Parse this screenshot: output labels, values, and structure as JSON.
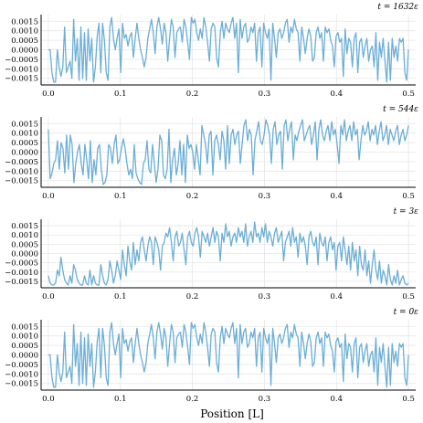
{
  "figure": {
    "xlabel": "Position [L]",
    "line_color": "#6baed6",
    "grid_color": "#e6e6e6"
  },
  "chart_data": [
    {
      "type": "line",
      "title": "t = 1632ε",
      "xlabel": "",
      "ylabel": "",
      "xlim": [
        -0.01,
        0.51
      ],
      "ylim": [
        -0.00185,
        0.00185
      ],
      "xticks": [
        0.0,
        0.1,
        0.2,
        0.3,
        0.4,
        0.5
      ],
      "xtick_labels": [
        "0.0",
        "0.1",
        "0.2",
        "0.3",
        "0.4",
        "0.5"
      ],
      "yticks": [
        0.0015,
        0.001,
        0.0005,
        0.0,
        -0.0005,
        -0.001,
        -0.0015
      ],
      "ytick_labels": [
        "0.0015",
        "0.0010",
        "0.0005",
        "0.0000",
        "−0.0005",
        "−0.0010",
        "−0.0015"
      ],
      "grid": true,
      "series": [
        {
          "x_start": 0.0,
          "x_end": 0.5,
          "values": [
            0.0,
            0.0,
            -0.0012,
            -0.0017,
            -0.0017,
            0.0,
            -0.0009,
            -0.0014,
            -0.0009,
            0.0012,
            -0.0012,
            -0.0009,
            -0.0006,
            -0.0015,
            0.0016,
            -0.0006,
            0.0006,
            -0.0016,
            0.0012,
            -0.0015,
            0.0009,
            -0.0016,
            0.0011,
            -0.0006,
            0.0006,
            -0.0017,
            -0.0009,
            0.0007,
            0.0014,
            -0.0012,
            0.0014,
            0.0005,
            -0.0012,
            -0.0016,
            0.0012,
            0.0017,
            0.0006,
            0.0,
            0.0006,
            0.0011,
            -0.0012,
            0.0014,
            0.0006,
            0.0008,
            0.0002,
            0.0007,
            0.0009,
            -0.0004,
            0.0006,
            0.0014,
            0.0006,
            0.0,
            -0.0004,
            -0.0009,
            -0.0004,
            0.0006,
            0.0011,
            0.0016,
            0.0009,
            -0.0002,
            0.0012,
            0.0017,
            0.0011,
            0.0003,
            0.0014,
            0.0009,
            -0.0006,
            0.0006,
            0.0016,
            0.0012,
            -0.0004,
            0.0009,
            0.0011,
            0.0012,
            0.0004,
            0.0016,
            0.0012,
            0.0004,
            -0.0005,
            0.0017,
            0.0014,
            0.0016,
            0.0009,
            0.0005,
            0.0011,
            0.0006,
            0.0017,
            0.0012,
            0.0004,
            -0.0006,
            0.0011,
            0.0014,
            0.0012,
            -0.0004,
            -0.0009,
            0.0009,
            0.0015,
            0.0006,
            0.0014,
            0.0011,
            0.0009,
            0.0014,
            0.0017,
            0.0006,
            0.0014,
            -0.0012,
            0.0016,
            0.0006,
            0.0012,
            0.0014,
            0.0004,
            0.0006,
            0.0012,
            0.0009,
            0.0014,
            -0.0006,
            0.0009,
            0.0012,
            -0.0009,
            0.0014,
            0.0009,
            0.0006,
            0.0011,
            -0.0016,
            0.0014,
            0.0006,
            -0.0004,
            0.0009,
            0.0011,
            0.0006,
            0.0009,
            0.0014,
            0.0016,
            0.0004,
            0.0012,
            0.0009,
            0.0016,
            0.0011,
            0.0009,
            -0.0006,
            0.0012,
            0.0006,
            -0.0002,
            0.0006,
            0.0011,
            0.0007,
            -0.0006,
            -0.0004,
            0.0009,
            0.0012,
            0.0006,
            0.0009,
            -0.0006,
            0.0012,
            0.0009,
            0.0011,
            0.0005,
            0.0002,
            -0.0009,
            0.0007,
            0.0009,
            0.0004,
            0.0006,
            -0.0014,
            0.0011,
            -0.0002,
            0.0006,
            0.0004,
            -0.0009,
            0.0006,
            0.0009,
            -0.0012,
            0.0004,
            0.0006,
            -0.0004,
            0.0002,
            0.0006,
            -0.0006,
            0.0,
            0.0002,
            -0.0009,
            0.0009,
            -0.0016,
            0.0004,
            -0.0004,
            0.0006,
            -0.0006,
            -0.0017,
            0.0004,
            -0.0016,
            0.0006,
            -0.0004,
            0.0002,
            -0.0006,
            0.0006,
            0.0004,
            0.0006,
            -0.0012,
            -0.0016,
            0.0
          ]
        }
      ]
    },
    {
      "type": "line",
      "title": "t = 544ε",
      "xlabel": "",
      "ylabel": "",
      "xlim": [
        -0.01,
        0.51
      ],
      "ylim": [
        -0.00185,
        0.00185
      ],
      "xticks": [
        0.0,
        0.1,
        0.2,
        0.3,
        0.4,
        0.5
      ],
      "xtick_labels": [
        "0.0",
        "0.1",
        "0.2",
        "0.3",
        "0.4",
        "0.5"
      ],
      "yticks": [
        0.0015,
        0.001,
        0.0005,
        0.0,
        -0.0005,
        -0.001,
        -0.0015
      ],
      "ytick_labels": [
        "0.0015",
        "0.0010",
        "0.0005",
        "0.0000",
        "−0.0005",
        "−0.0010",
        "−0.0015"
      ],
      "grid": true,
      "series": [
        {
          "x_start": 0.0,
          "x_end": 0.5,
          "values": [
            0.0012,
            -0.0014,
            -0.0011,
            -0.0006,
            -0.0004,
            0.0006,
            -0.0009,
            0.0005,
            0.0002,
            -0.0011,
            0.0009,
            -0.0009,
            0.0009,
            0.0004,
            -0.0016,
            -0.0006,
            0.0,
            0.0004,
            -0.0006,
            -0.0012,
            0.0004,
            -0.0004,
            -0.0014,
            0.0006,
            -0.0016,
            -0.0004,
            -0.0012,
            0.0002,
            0.0004,
            -0.0009,
            -0.0017,
            -0.0016,
            -0.0012,
            0.0004,
            0.0002,
            -0.0006,
            0.0004,
            0.0009,
            -0.0006,
            -0.0004,
            0.0002,
            0.0007,
            0.0002,
            -0.0006,
            -0.0012,
            -0.0009,
            -0.0014,
            0.0004,
            -0.0011,
            -0.0014,
            -0.0016,
            -0.0017,
            -0.0006,
            -0.0004,
            0.0006,
            -0.0009,
            -0.0011,
            0.0004,
            -0.0006,
            -0.0016,
            -0.0009,
            0.0009,
            0.0006,
            -0.0012,
            -0.0014,
            -0.0009,
            0.0012,
            -0.0016,
            -0.0004,
            0.0002,
            -0.0012,
            -0.0006,
            0.0006,
            -0.0012,
            0.0004,
            -0.0016,
            0.0009,
            0.0002,
            0.0004,
            0.0,
            -0.0009,
            0.0004,
            -0.0004,
            -0.0012,
            0.0014,
            0.0009,
            0.0004,
            -0.0006,
            0.0009,
            0.0011,
            -0.0012,
            0.0006,
            0.0009,
            0.0004,
            -0.0004,
            0.0011,
            0.0006,
            -0.0009,
            0.0014,
            -0.0006,
            0.0009,
            0.0012,
            0.0004,
            0.0009,
            0.0011,
            -0.0006,
            0.0004,
            0.0014,
            0.0017,
            0.0006,
            0.0012,
            0.0009,
            -0.0012,
            0.0006,
            0.0011,
            0.0016,
            0.0006,
            0.0004,
            0.0009,
            0.0017,
            0.0014,
            0.0009,
            -0.0006,
            0.0012,
            0.0016,
            0.0004,
            0.0009,
            0.0011,
            -0.0009,
            0.0014,
            0.0017,
            0.0006,
            0.0012,
            0.0016,
            -0.0004,
            0.0009,
            0.0006,
            0.0011,
            0.0014,
            0.0017,
            0.0006,
            0.0009,
            0.0012,
            0.0014,
            0.0004,
            0.0009,
            0.0016,
            -0.0004,
            0.0012,
            0.0017,
            0.0009,
            0.0006,
            0.0011,
            0.0014,
            0.0006,
            0.0016,
            0.0009,
            0.0012,
            0.0004,
            -0.0006,
            0.0014,
            0.0009,
            0.0017,
            0.0006,
            0.0011,
            0.0014,
            0.0006,
            0.0016,
            0.0009,
            0.0012,
            -0.0004,
            0.0006,
            0.0014,
            0.0009,
            0.0011,
            0.0016,
            0.0006,
            0.0012,
            0.0009,
            0.0014,
            0.0004,
            0.0011,
            0.0016,
            0.0006,
            0.0009,
            0.0014,
            0.0004,
            0.0012,
            0.0009,
            0.0006,
            0.0011,
            0.0014,
            0.0004,
            0.0009,
            0.0012,
            0.0006,
            0.0009,
            0.0014
          ]
        }
      ]
    },
    {
      "type": "line",
      "title": "t = 3ε",
      "xlabel": "",
      "ylabel": "",
      "xlim": [
        -0.01,
        0.51
      ],
      "ylim": [
        -0.00185,
        0.00185
      ],
      "xticks": [
        0.0,
        0.1,
        0.2,
        0.3,
        0.4,
        0.5
      ],
      "xtick_labels": [
        "0.0",
        "0.1",
        "0.2",
        "0.3",
        "0.4",
        "0.5"
      ],
      "yticks": [
        0.0015,
        0.001,
        0.0005,
        0.0,
        -0.0005,
        -0.001,
        -0.0015
      ],
      "ytick_labels": [
        "0.0015",
        "0.0010",
        "0.0005",
        "0.0000",
        "−0.0005",
        "−0.0010",
        "−0.0015"
      ],
      "grid": true,
      "series": [
        {
          "x_start": 0.0,
          "x_end": 0.5,
          "values": [
            -0.0012,
            -0.0016,
            -0.0017,
            -0.0017,
            -0.0016,
            -0.0009,
            -0.0012,
            -0.0002,
            -0.0009,
            -0.0014,
            -0.0016,
            -0.0017,
            -0.0012,
            -0.0016,
            -0.0006,
            -0.0009,
            -0.0014,
            -0.0016,
            -0.0017,
            -0.0017,
            -0.0012,
            -0.0016,
            -0.0017,
            -0.0009,
            -0.0017,
            -0.0012,
            -0.0016,
            -0.0017,
            -0.0017,
            -0.0006,
            -0.0012,
            -0.0016,
            -0.0017,
            -0.0014,
            -0.0004,
            -0.0009,
            -0.0016,
            -0.0012,
            -0.0004,
            -0.0009,
            -0.0014,
            0.0002,
            -0.0006,
            -0.0012,
            0.0004,
            -0.0004,
            -0.0009,
            0.0006,
            -0.0006,
            0.0002,
            -0.0004,
            0.0006,
            0.0009,
            0.0002,
            -0.0004,
            0.0004,
            0.0009,
            0.0006,
            -0.0006,
            0.0009,
            0.0006,
            0.0002,
            -0.0009,
            0.0004,
            0.0006,
            0.0011,
            0.0009,
            0.0014,
            0.0006,
            -0.0004,
            0.0009,
            0.0012,
            0.0004,
            0.0006,
            0.0011,
            0.0002,
            -0.0006,
            0.0009,
            0.0012,
            0.0006,
            0.0004,
            0.0011,
            0.0014,
            0.0009,
            -0.0002,
            0.0012,
            0.0009,
            0.0006,
            0.0011,
            0.0004,
            0.0009,
            0.0014,
            0.0006,
            0.0012,
            0.0009,
            -0.0004,
            0.0011,
            0.0006,
            0.0016,
            0.0009,
            0.0012,
            0.0004,
            0.0009,
            0.0011,
            0.0006,
            0.0014,
            0.0009,
            0.0012,
            0.0006,
            0.0016,
            0.0004,
            0.0009,
            0.0012,
            0.0006,
            0.0017,
            0.0009,
            0.0011,
            0.0006,
            0.0014,
            0.0009,
            0.0016,
            0.0006,
            0.0012,
            0.0009,
            0.0004,
            0.0011,
            0.0014,
            0.0006,
            0.0009,
            0.0012,
            -0.0004,
            0.0006,
            0.0009,
            0.0012,
            0.0004,
            0.0014,
            0.0006,
            0.0009,
            -0.0002,
            0.0011,
            0.0006,
            0.0009,
            0.0004,
            -0.0006,
            0.0009,
            0.0012,
            0.0006,
            0.0004,
            0.0009,
            -0.0006,
            0.0011,
            0.0006,
            0.0004,
            0.0009,
            -0.0004,
            0.0006,
            0.0009,
            0.0002,
            0.0006,
            -0.0009,
            0.0004,
            0.0006,
            -0.0004,
            0.0009,
            0.0002,
            -0.0006,
            0.0004,
            -0.0009,
            0.0006,
            -0.0004,
            0.0002,
            -0.0012,
            0.0004,
            -0.0006,
            -0.0009,
            0.0002,
            -0.0012,
            -0.0004,
            -0.0016,
            -0.0006,
            0.0002,
            -0.0009,
            -0.0014,
            -0.0004,
            -0.0016,
            -0.0009,
            -0.0012,
            -0.0017,
            -0.0006,
            -0.0014,
            -0.0017,
            -0.0012,
            -0.0016,
            -0.0009,
            -0.0017,
            -0.0014,
            -0.0012,
            -0.0016,
            -0.0017,
            -0.0016
          ]
        }
      ]
    },
    {
      "type": "line",
      "title": "t = 0ε",
      "xlabel": "Position [L]",
      "ylabel": "",
      "xlim": [
        -0.01,
        0.51
      ],
      "ylim": [
        -0.00185,
        0.00185
      ],
      "xticks": [
        0.0,
        0.1,
        0.2,
        0.3,
        0.4,
        0.5
      ],
      "xtick_labels": [
        "0.0",
        "0.1",
        "0.2",
        "0.3",
        "0.4",
        "0.5"
      ],
      "yticks": [
        0.0015,
        0.001,
        0.0005,
        0.0,
        -0.0005,
        -0.001,
        -0.0015
      ],
      "ytick_labels": [
        "0.0015",
        "0.0010",
        "0.0005",
        "0.0000",
        "−0.0005",
        "−0.0010",
        "−0.0015"
      ],
      "grid": true,
      "series": [
        {
          "x_start": 0.0,
          "x_end": 0.5,
          "values": [
            0.0,
            0.0,
            -0.0012,
            -0.0017,
            -0.0017,
            0.0,
            -0.0009,
            -0.0014,
            -0.0009,
            0.0012,
            -0.0012,
            -0.0009,
            -0.0006,
            -0.0015,
            0.0016,
            -0.0006,
            0.0006,
            -0.0016,
            0.0012,
            -0.0015,
            0.0009,
            -0.0016,
            0.0011,
            -0.0006,
            0.0006,
            -0.0017,
            -0.0009,
            0.0007,
            0.0014,
            -0.0012,
            0.0014,
            0.0005,
            -0.0012,
            -0.0016,
            0.0012,
            0.0017,
            0.0006,
            0.0,
            0.0006,
            0.0011,
            -0.0012,
            0.0014,
            0.0006,
            0.0008,
            0.0002,
            0.0007,
            0.0009,
            -0.0004,
            0.0006,
            0.0014,
            0.0006,
            0.0,
            -0.0004,
            -0.0009,
            -0.0004,
            0.0006,
            0.0011,
            0.0016,
            0.0009,
            -0.0002,
            0.0012,
            0.0017,
            0.0011,
            0.0003,
            0.0014,
            0.0009,
            -0.0006,
            0.0006,
            0.0016,
            0.0012,
            -0.0004,
            0.0009,
            0.0011,
            0.0012,
            0.0004,
            0.0016,
            0.0012,
            0.0004,
            -0.0005,
            0.0017,
            0.0014,
            0.0016,
            0.0009,
            0.0005,
            0.0011,
            0.0006,
            0.0017,
            0.0012,
            0.0004,
            -0.0006,
            0.0011,
            0.0014,
            0.0012,
            -0.0004,
            -0.0009,
            0.0009,
            0.0015,
            0.0006,
            0.0014,
            0.0011,
            0.0009,
            0.0014,
            0.0017,
            0.0006,
            0.0014,
            -0.0012,
            0.0016,
            0.0006,
            0.0012,
            0.0014,
            0.0004,
            0.0006,
            0.0012,
            0.0009,
            0.0014,
            -0.0006,
            0.0009,
            0.0012,
            -0.0009,
            0.0014,
            0.0009,
            0.0006,
            0.0011,
            -0.0016,
            0.0014,
            0.0006,
            -0.0004,
            0.0009,
            0.0011,
            0.0006,
            0.0009,
            0.0014,
            0.0016,
            0.0004,
            0.0012,
            0.0009,
            0.0016,
            0.0011,
            0.0009,
            -0.0006,
            0.0012,
            0.0006,
            -0.0002,
            0.0006,
            0.0011,
            0.0007,
            -0.0006,
            -0.0004,
            0.0009,
            0.0012,
            0.0006,
            0.0009,
            -0.0006,
            0.0012,
            0.0009,
            0.0011,
            0.0005,
            0.0002,
            -0.0009,
            0.0007,
            0.0009,
            0.0004,
            0.0006,
            -0.0014,
            0.0011,
            -0.0002,
            0.0006,
            0.0004,
            -0.0009,
            0.0006,
            0.0009,
            -0.0012,
            0.0004,
            0.0006,
            -0.0004,
            0.0002,
            0.0006,
            -0.0006,
            0.0,
            0.0002,
            -0.0009,
            0.0009,
            -0.0016,
            0.0004,
            -0.0004,
            0.0006,
            -0.0006,
            -0.0017,
            0.0004,
            -0.0016,
            0.0006,
            -0.0004,
            0.0002,
            -0.0006,
            0.0006,
            0.0004,
            0.0006,
            -0.0012,
            -0.0016,
            0.0
          ]
        }
      ]
    }
  ]
}
